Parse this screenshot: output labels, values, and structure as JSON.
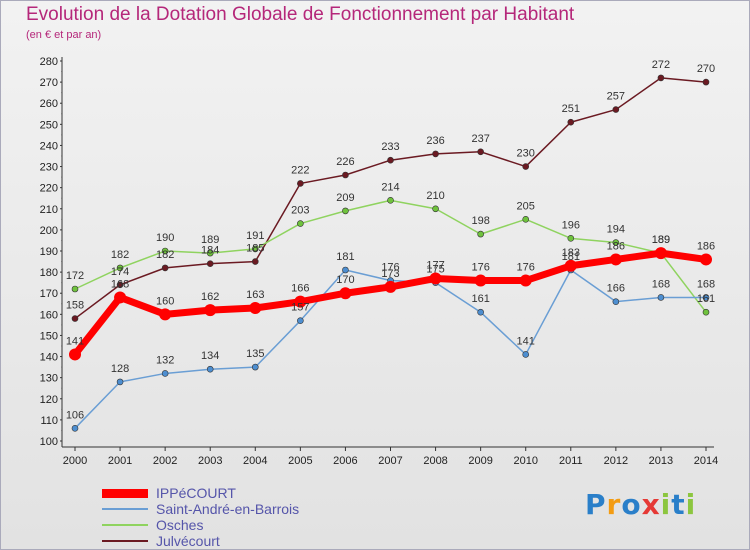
{
  "header": {
    "title": "Evolution de la Dotation Globale de Fonctionnement par Habitant",
    "subtitle": "(en € et par an)"
  },
  "logo_text": "Proxiti",
  "chart_data": {
    "type": "line",
    "title": "Evolution de la Dotation Globale de Fonctionnement par Habitant",
    "subtitle": "(en € et par an)",
    "xlabel": "",
    "ylabel": "",
    "ylim": [
      100,
      280
    ],
    "ytick_step": 10,
    "grid": false,
    "legend_position": "bottom-left",
    "x": [
      "2000",
      "2001",
      "2002",
      "2003",
      "2004",
      "2005",
      "2006",
      "2007",
      "2008",
      "2009",
      "2010",
      "2011",
      "2012",
      "2013",
      "2014"
    ],
    "series": [
      {
        "name": "IPPéCOURT",
        "color": "#ff0000",
        "values": [
          141,
          168,
          160,
          162,
          163,
          166,
          170,
          173,
          177,
          176,
          176,
          183,
          186,
          189,
          186
        ],
        "labels": [
          "141",
          "168",
          "160",
          "162",
          "163",
          "166",
          "170",
          "173",
          "177",
          "176",
          "176",
          "183",
          "186",
          "189",
          "186"
        ]
      },
      {
        "name": "Saint-André-en-Barrois",
        "color": "#6a9ed4",
        "values": [
          106,
          128,
          132,
          134,
          135,
          157,
          181,
          176,
          175,
          161,
          141,
          181,
          166,
          168,
          168
        ],
        "labels": [
          "106",
          "128",
          "132",
          "134",
          "135",
          "157",
          "181",
          "176",
          "175",
          "161",
          "141",
          "181",
          "166",
          "168",
          "168"
        ]
      },
      {
        "name": "Osches",
        "color": "#8fd35f",
        "values": [
          172,
          182,
          190,
          189,
          191,
          203,
          209,
          214,
          210,
          198,
          205,
          196,
          194,
          189,
          161
        ],
        "labels": [
          "172",
          "182",
          "190",
          "189",
          "191",
          "203",
          "209",
          "214",
          "210",
          "198",
          "205",
          "196",
          "194",
          "189",
          "161"
        ]
      },
      {
        "name": "Julvécourt",
        "color": "#6b1a22",
        "values": [
          158,
          174,
          182,
          184,
          185,
          222,
          226,
          233,
          236,
          237,
          230,
          251,
          257,
          272,
          270
        ],
        "labels": [
          "158",
          "174",
          "182",
          "184",
          "185",
          "222",
          "226",
          "233",
          "236",
          "237",
          "230",
          "251",
          "257",
          "272",
          "270"
        ]
      }
    ]
  }
}
